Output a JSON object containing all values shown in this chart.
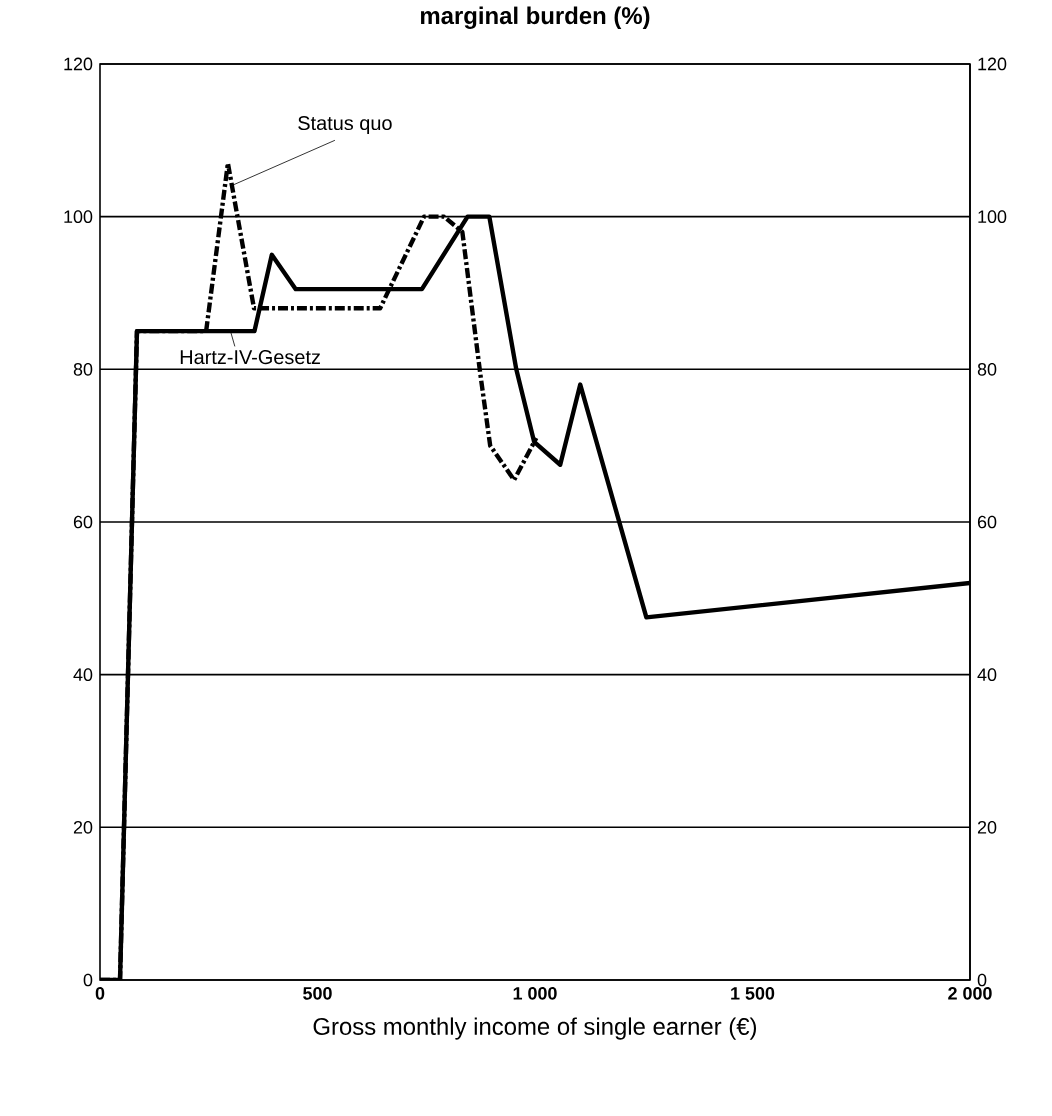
{
  "chart_data": {
    "type": "line",
    "title": "marginal burden (%)",
    "xlabel": "Gross monthly income of single earner (€)",
    "series": [
      {
        "name": "Hartz-IV-Gesetz",
        "color": "#000000",
        "line_style": "solid",
        "x": [
          0,
          46,
          85,
          355,
          395,
          450,
          740,
          845,
          895,
          957,
          998,
          1058,
          1104,
          1256,
          2000
        ],
        "values": [
          0,
          0,
          85,
          85,
          95,
          90.5,
          90.5,
          100,
          100,
          80,
          70.5,
          67.5,
          78,
          47.5,
          52
        ]
      },
      {
        "name": "Status quo",
        "color": "#000000",
        "line_style": "dashed",
        "x": [
          0,
          46,
          85,
          244,
          294,
          354,
          644,
          745,
          791,
          833,
          874,
          897,
          952,
          1003
        ],
        "values": [
          0,
          0,
          85,
          85,
          107,
          88,
          88,
          100,
          100,
          98,
          79.5,
          70,
          65.5,
          71
        ]
      }
    ],
    "xlim": [
      0,
      2000
    ],
    "xticks": [
      0,
      500,
      {
        "value": 1000,
        "label": "1 000"
      },
      {
        "value": 1500,
        "label": "1 500"
      },
      {
        "value": 2000,
        "label": "2 000"
      }
    ],
    "ylim": [
      0,
      120
    ],
    "yticks": [
      0,
      20,
      40,
      60,
      80,
      100,
      120
    ],
    "y2lim": [
      0,
      120
    ],
    "y2ticks": [
      0,
      20,
      40,
      60,
      80,
      100,
      120
    ],
    "grid": "y"
  }
}
